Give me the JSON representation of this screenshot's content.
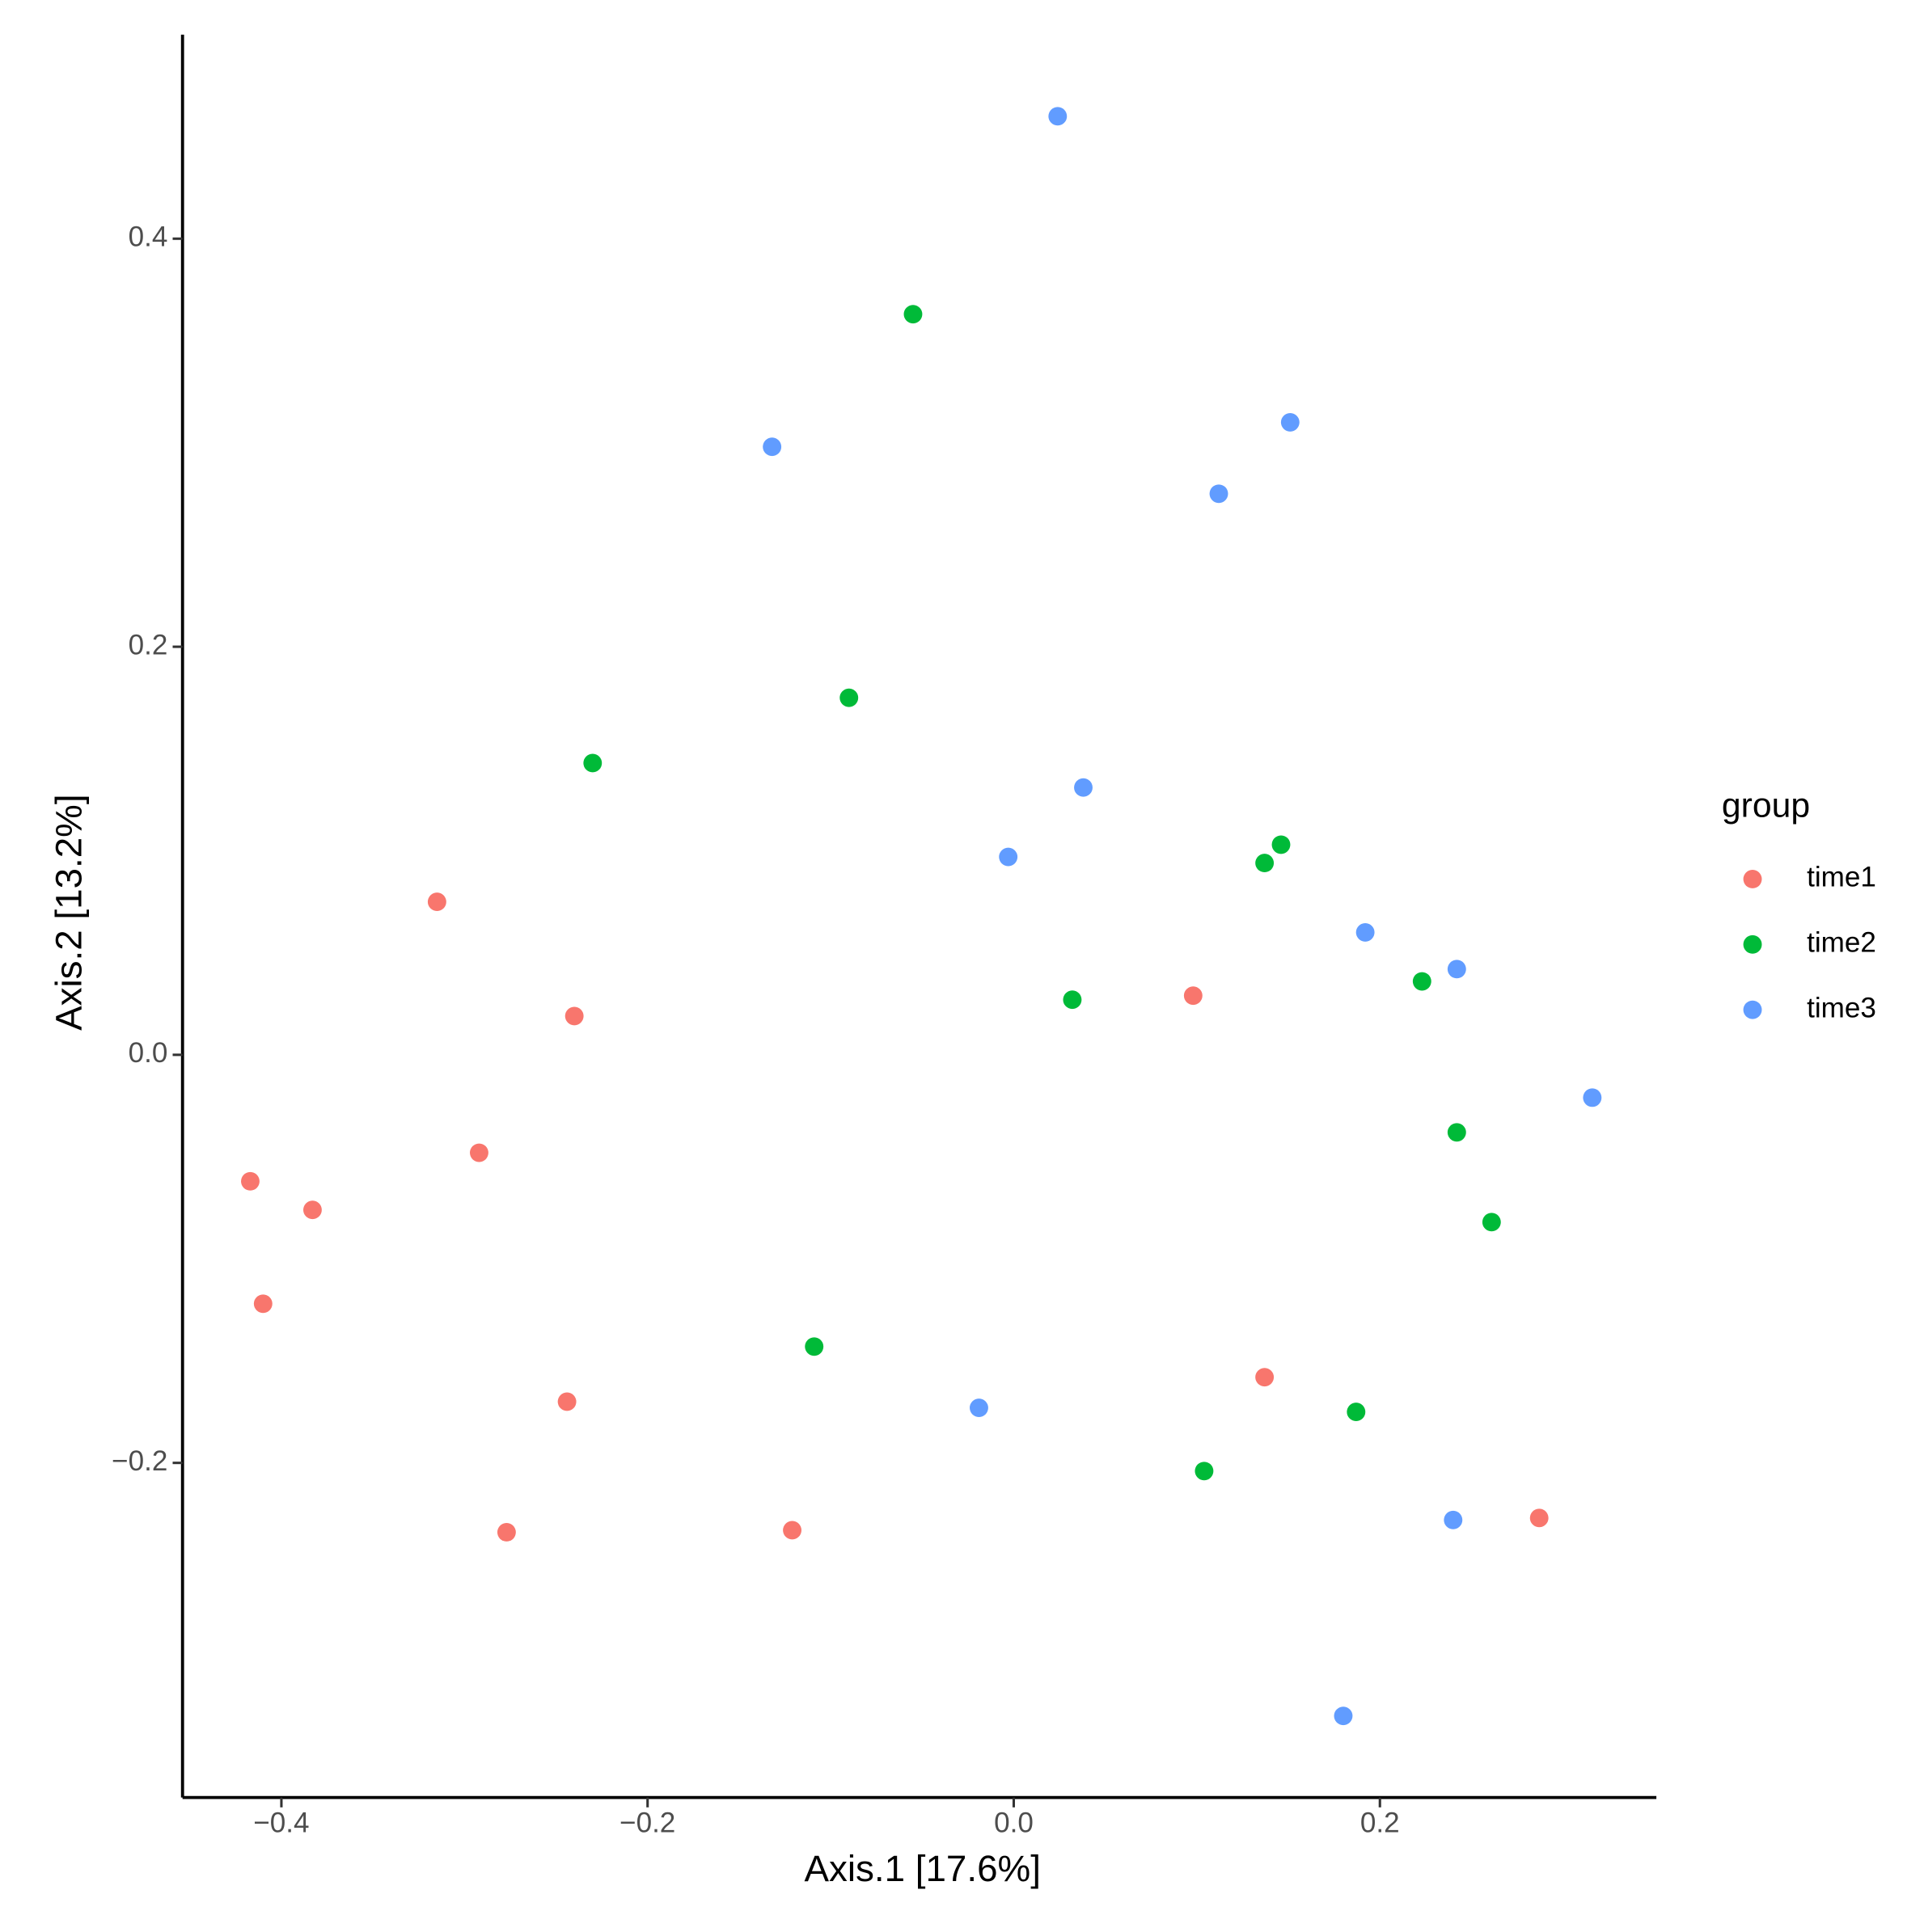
{
  "chart_data": {
    "type": "scatter",
    "x_label": "Axis.1   [17.6%]",
    "y_label": "Axis.2   [13.2%]",
    "legend_title": "group",
    "legend_position": "right",
    "xlim": [
      -0.454,
      0.351
    ],
    "ylim": [
      -0.364,
      0.5
    ],
    "xticks": [
      {
        "value": -0.4,
        "label": "−0.4"
      },
      {
        "value": -0.2,
        "label": "−0.2"
      },
      {
        "value": 0,
        "label": "0.0"
      },
      0.2
    ],
    "yticks": [
      {
        "value": -0.2,
        "label": "−0.2"
      },
      {
        "value": 0,
        "label": "0.0"
      },
      0.2,
      0.4
    ],
    "series": [
      {
        "name": "time1",
        "color": "#F8766D",
        "x": [
          -0.315,
          -0.24,
          -0.292,
          -0.417,
          -0.383,
          -0.41,
          -0.244,
          -0.277,
          -0.121,
          0.098,
          0.137,
          0.287
        ],
        "values": [
          0.075,
          0.019,
          -0.048,
          -0.062,
          -0.076,
          -0.122,
          -0.17,
          -0.234,
          -0.233,
          0.029,
          -0.158,
          -0.227
        ]
      },
      {
        "name": "time2",
        "color": "#00BA38",
        "x": [
          -0.055,
          -0.09,
          -0.23,
          0.146,
          0.137,
          0.032,
          0.223,
          0.242,
          0.261,
          -0.109,
          0.187,
          0.104
        ],
        "values": [
          0.363,
          0.175,
          0.143,
          0.103,
          0.094,
          0.027,
          0.036,
          -0.038,
          -0.082,
          -0.143,
          -0.175,
          -0.204
        ]
      },
      {
        "name": "time3",
        "color": "#619CFF",
        "x": [
          0.024,
          -0.132,
          0.151,
          0.112,
          0.038,
          -0.003,
          0.192,
          0.242,
          0.316,
          -0.019,
          0.24,
          0.18
        ],
        "values": [
          0.46,
          0.298,
          0.31,
          0.275,
          0.131,
          0.097,
          0.06,
          0.042,
          -0.021,
          -0.173,
          -0.228,
          -0.324
        ]
      }
    ]
  }
}
